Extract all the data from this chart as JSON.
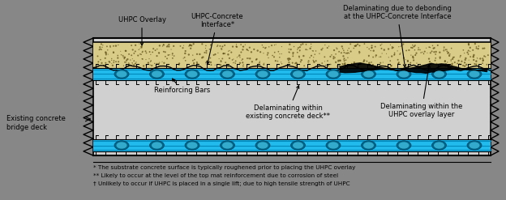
{
  "fig_width": 6.24,
  "fig_height": 2.47,
  "dpi": 100,
  "bg_color": "#878787",
  "deck_bg": "#d0d0d0",
  "uhpc_color": "#d8cc88",
  "rebar_band_color": "#00AADD",
  "rebar_dark": "#007799",
  "rebar_mid": "#00BBEE",
  "black_color": "#000000",
  "footnote1": "* The substrate concrete surface is typically roughened prior to placing the UHPC overlay",
  "footnote2": "** Likely to occur at the level of the top mat reinforcement due to corrosion of steel",
  "footnote3": "† Unlikely to occur if UHPC is placed in a single lift; due to high tensile strength of UHPC",
  "label_uhpc": "UHPC Overlay",
  "label_interface": "UHPC-Concrete\nInterface*",
  "label_debond": "Delaminating due to debonding\nat the UHPC-Concrete Interface",
  "label_rebars": "Reinforcing Bars",
  "label_delamwithin": "Delaminating within\nexisting concrete deck**",
  "label_delamuhpc": "Delaminating within the\nUHPC overlay layer",
  "label_deck": "Existing concrete\nbridge deck"
}
